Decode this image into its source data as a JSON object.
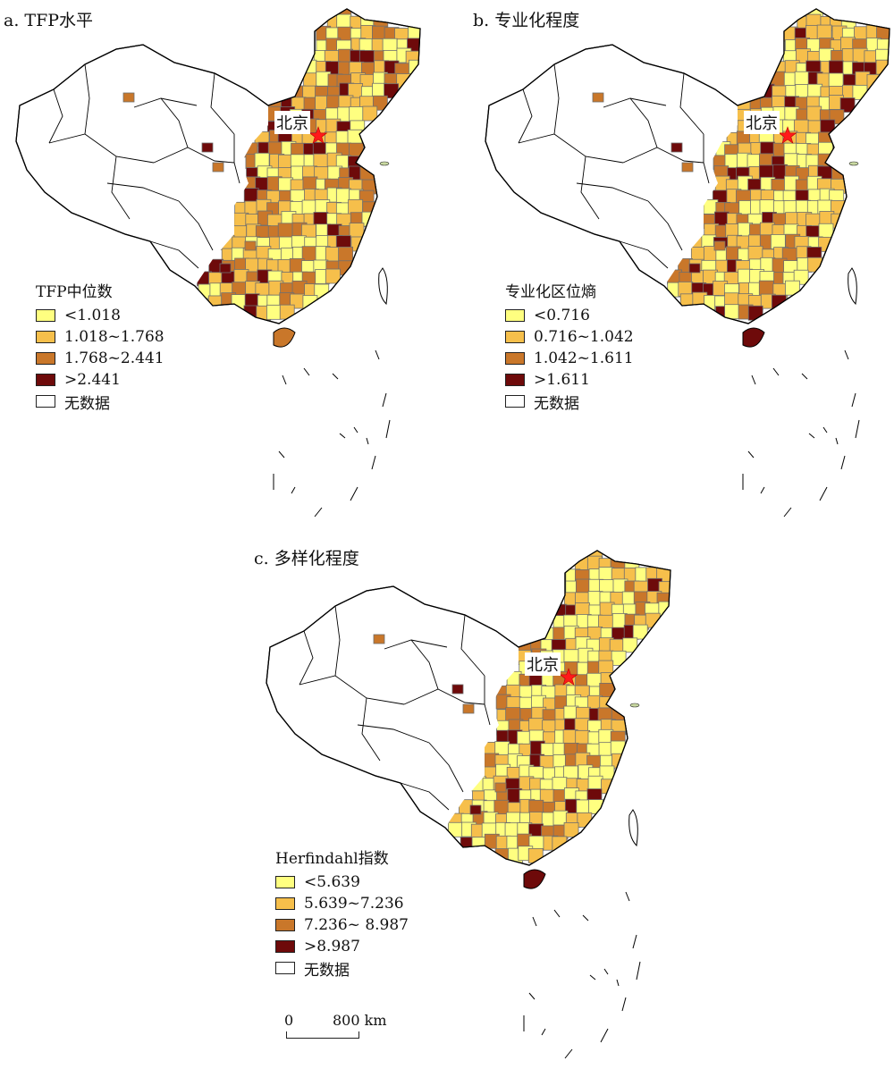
{
  "colors": {
    "class1": "#ffff80",
    "class2": "#f6bf4b",
    "class3": "#c9772a",
    "class4": "#6e0a0a",
    "no_data": "#ffffff",
    "boundary": "#6f6f6f",
    "capital_star": "#ff1a1a"
  },
  "capital_label": "北京",
  "panels": [
    {
      "id": "a",
      "title": "a. TFP水平",
      "legend_title": "TFP中位数",
      "legend_items": [
        "<1.018",
        "1.018~1.768",
        "1.768~2.441",
        ">2.441",
        "无数据"
      ]
    },
    {
      "id": "b",
      "title": "b. 专业化程度",
      "legend_title": "专业化区位熵",
      "legend_items": [
        "<0.716",
        "0.716~1.042",
        "1.042~1.611",
        ">1.611",
        "无数据"
      ]
    },
    {
      "id": "c",
      "title": "c. 多样化程度",
      "legend_title": "Herfindahl指数",
      "legend_items": [
        "<5.639",
        "5.639~7.236",
        "7.236~ 8.987",
        ">8.987",
        "无数据"
      ]
    }
  ],
  "scale_bar": {
    "start": "0",
    "end": "800 km"
  }
}
